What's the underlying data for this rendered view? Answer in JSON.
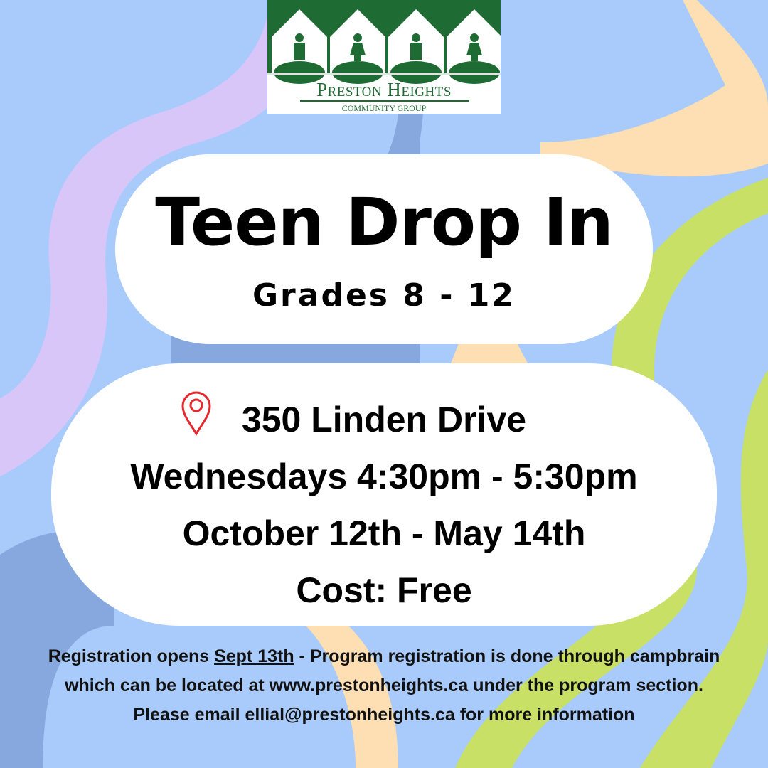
{
  "logo": {
    "title": "Preston Heights",
    "subtitle": "COMMUNITY GROUP",
    "color": "#1f6b34"
  },
  "title": "Teen Drop In",
  "grades": "Grades 8 - 12",
  "details": {
    "address": "350 Linden Drive",
    "schedule": "Wednesdays 4:30pm - 5:30pm",
    "dates": "October 12th - May 14th",
    "cost": "Cost: Free"
  },
  "footer": {
    "reg_prefix": "Registration opens ",
    "reg_date": "Sept 13th",
    "reg_rest": " - Program registration is done through campbrain which can be located at www.prestonheights.ca under the program section.",
    "contact": "Please email ellial@prestonheights.ca for more information"
  },
  "colors": {
    "background": "#a8cbfb",
    "lavender": "#d8c6f8",
    "peach": "#fddfb3",
    "green": "#c8e066",
    "blue": "#86a8df",
    "pin": "#e8262b"
  }
}
